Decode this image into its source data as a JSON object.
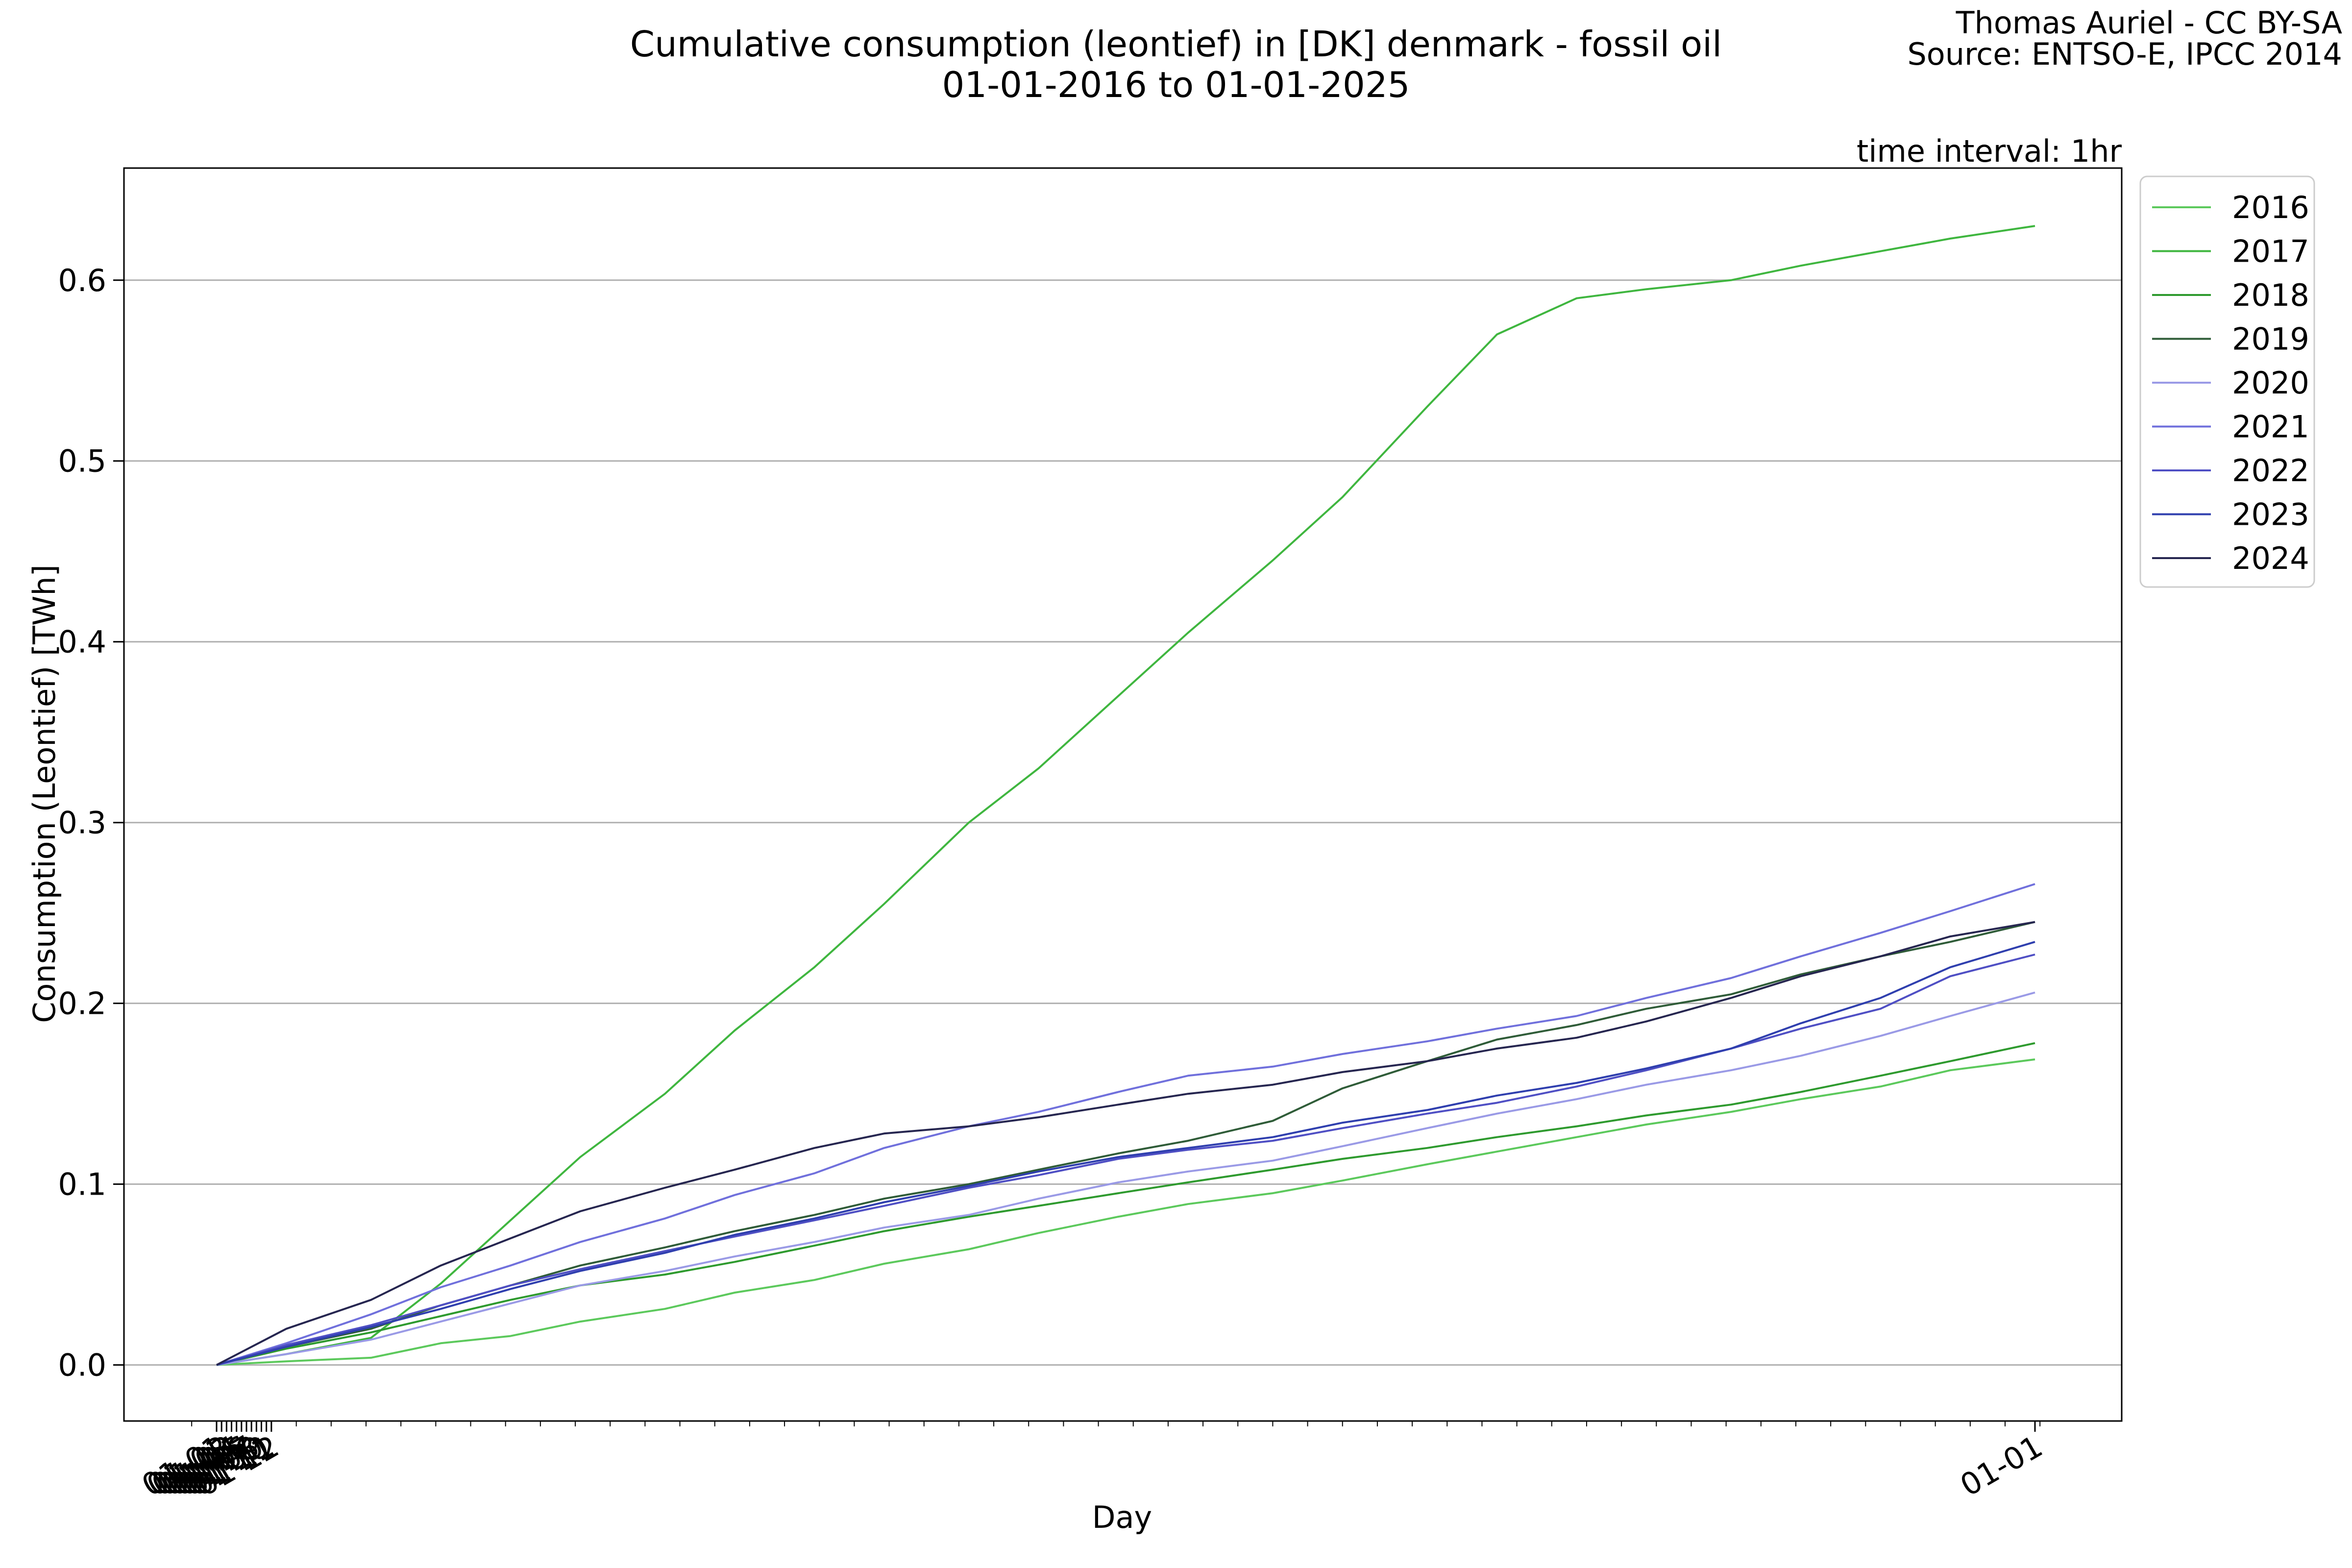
{
  "credit": {
    "author": "Thomas Auriel - CC BY-SA",
    "source": "Source: ENTSO-E, IPCC 2014"
  },
  "interval_label": "time interval: 1hr",
  "chart_data": {
    "type": "line",
    "title": "Cumulative consumption (leontief) in [DK] denmark - fossil oil",
    "subtitle": "01-01-2016 to 01-01-2025",
    "xlabel": "Day",
    "ylabel": "Consumption (Leontief) [TWh]",
    "x_ticks": [
      "01-01",
      "01-02",
      "01-03",
      "01-04",
      "01-05",
      "01-06",
      "01-07",
      "01-08",
      "01-09",
      "01-10",
      "01-11",
      "01-12",
      "01-01"
    ],
    "y_ticks": [
      0.0,
      0.1,
      0.2,
      0.3,
      0.4,
      0.5,
      0.6
    ],
    "y_tick_labels": [
      "0.0",
      "0.1",
      "0.2",
      "0.3",
      "0.4",
      "0.5",
      "0.6"
    ],
    "xlim": [
      "2024-12-26",
      "2026-01-06"
    ],
    "ylim": [
      -0.031,
      0.662
    ],
    "grid": "horizontal",
    "legend_position": "outside-top-right",
    "x": [
      "01-01",
      "01-15",
      "02-01",
      "02-15",
      "03-01",
      "03-15",
      "04-01",
      "04-15",
      "05-01",
      "05-15",
      "06-01",
      "06-15",
      "07-01",
      "07-15",
      "08-01",
      "08-15",
      "09-01",
      "09-15",
      "10-01",
      "10-15",
      "11-01",
      "11-15",
      "12-01",
      "12-15",
      "01-01"
    ],
    "series": [
      {
        "name": "2016",
        "color": "#5cc95c",
        "values": [
          0,
          0.002,
          0.004,
          0.012,
          0.016,
          0.024,
          0.031,
          0.04,
          0.047,
          0.056,
          0.064,
          0.073,
          0.082,
          0.089,
          0.095,
          0.102,
          0.111,
          0.118,
          0.126,
          0.133,
          0.14,
          0.147,
          0.154,
          0.163,
          0.169
        ]
      },
      {
        "name": "2017",
        "color": "#3fb63f",
        "values": [
          0,
          0.006,
          0.015,
          0.045,
          0.08,
          0.115,
          0.15,
          0.185,
          0.22,
          0.255,
          0.3,
          0.33,
          0.37,
          0.405,
          0.445,
          0.48,
          0.53,
          0.57,
          0.59,
          0.595,
          0.6,
          0.608,
          0.616,
          0.623,
          0.63
        ]
      },
      {
        "name": "2018",
        "color": "#2e9a2e",
        "values": [
          0,
          0.009,
          0.018,
          0.027,
          0.036,
          0.044,
          0.05,
          0.057,
          0.066,
          0.074,
          0.082,
          0.088,
          0.095,
          0.101,
          0.108,
          0.114,
          0.12,
          0.126,
          0.132,
          0.138,
          0.144,
          0.151,
          0.16,
          0.168,
          0.178
        ]
      },
      {
        "name": "2019",
        "color": "#2f5c38",
        "values": [
          0,
          0.01,
          0.02,
          0.033,
          0.044,
          0.055,
          0.065,
          0.074,
          0.083,
          0.092,
          0.1,
          0.108,
          0.117,
          0.124,
          0.135,
          0.153,
          0.168,
          0.18,
          0.188,
          0.197,
          0.205,
          0.216,
          0.226,
          0.234,
          0.245
        ]
      },
      {
        "name": "2020",
        "color": "#9a9ae6",
        "values": [
          0,
          0.006,
          0.014,
          0.024,
          0.034,
          0.044,
          0.052,
          0.06,
          0.068,
          0.076,
          0.083,
          0.092,
          0.101,
          0.107,
          0.113,
          0.121,
          0.131,
          0.139,
          0.147,
          0.155,
          0.163,
          0.171,
          0.182,
          0.193,
          0.206
        ]
      },
      {
        "name": "2021",
        "color": "#7070dc",
        "values": [
          0,
          0.012,
          0.028,
          0.043,
          0.055,
          0.068,
          0.081,
          0.094,
          0.106,
          0.12,
          0.132,
          0.14,
          0.151,
          0.16,
          0.165,
          0.172,
          0.179,
          0.186,
          0.193,
          0.203,
          0.214,
          0.226,
          0.239,
          0.251,
          0.266
        ]
      },
      {
        "name": "2022",
        "color": "#4f4fc4",
        "values": [
          0,
          0.011,
          0.022,
          0.033,
          0.044,
          0.053,
          0.063,
          0.071,
          0.08,
          0.088,
          0.098,
          0.105,
          0.114,
          0.119,
          0.124,
          0.131,
          0.139,
          0.145,
          0.154,
          0.163,
          0.175,
          0.186,
          0.197,
          0.215,
          0.227
        ]
      },
      {
        "name": "2023",
        "color": "#2f3fae",
        "values": [
          0,
          0.01,
          0.021,
          0.031,
          0.042,
          0.052,
          0.062,
          0.072,
          0.081,
          0.09,
          0.099,
          0.107,
          0.115,
          0.12,
          0.126,
          0.134,
          0.141,
          0.149,
          0.156,
          0.164,
          0.175,
          0.189,
          0.203,
          0.22,
          0.234
        ]
      },
      {
        "name": "2024",
        "color": "#262650",
        "values": [
          0,
          0.02,
          0.036,
          0.055,
          0.07,
          0.085,
          0.098,
          0.108,
          0.12,
          0.128,
          0.132,
          0.137,
          0.144,
          0.15,
          0.155,
          0.162,
          0.168,
          0.175,
          0.181,
          0.19,
          0.203,
          0.215,
          0.226,
          0.237,
          0.245
        ]
      }
    ]
  }
}
